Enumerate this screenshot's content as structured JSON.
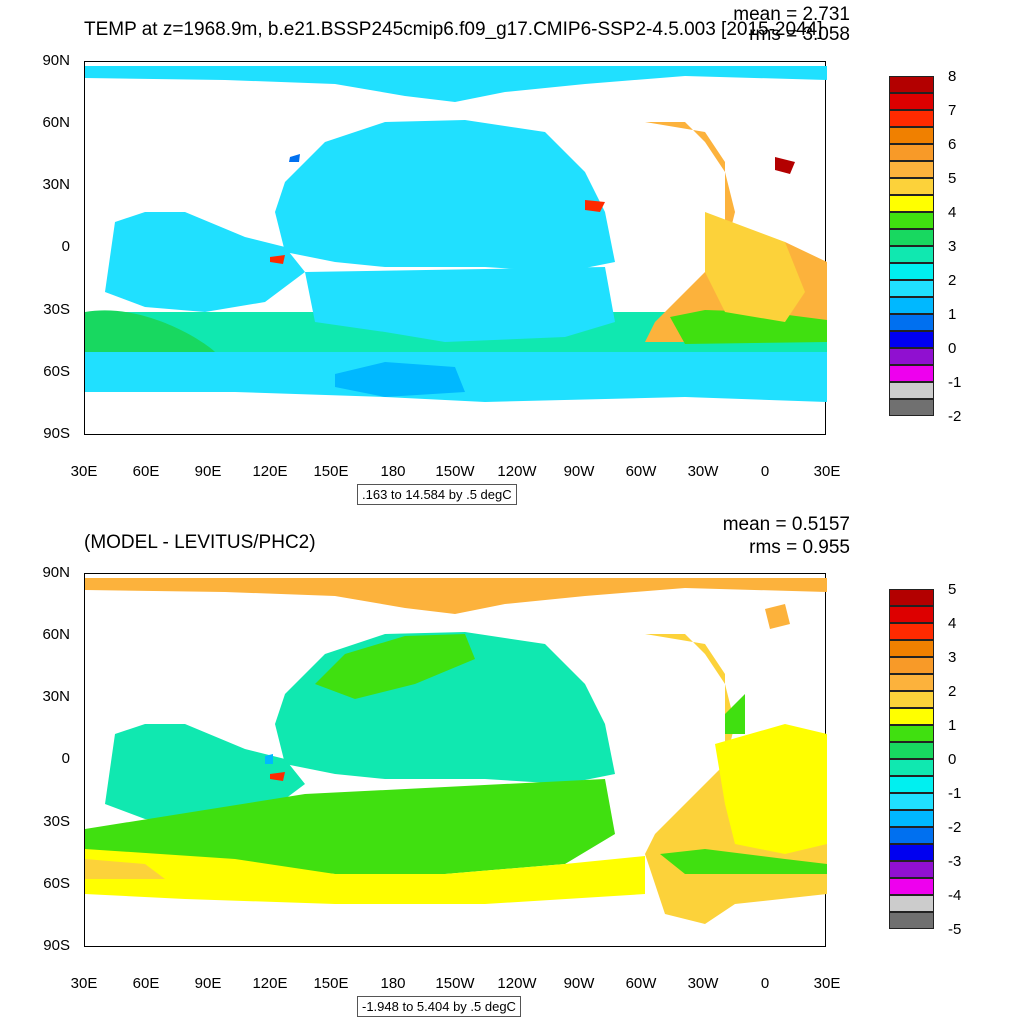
{
  "top": {
    "title": "TEMP at z=1968.9m, b.e21.BSSP245cmip6.f09_g17.CMIP6-SSP2-4.5.003 [2015-2044]",
    "mean": "mean = 2.731",
    "rms": "rms = 3.058",
    "range_label": ".163 to 14.584 by .5 degC",
    "y_ticks": [
      "90N",
      "60N",
      "30N",
      "0",
      "30S",
      "60S",
      "90S"
    ],
    "x_ticks": [
      "30E",
      "60E",
      "90E",
      "120E",
      "150E",
      "180",
      "150W",
      "120W",
      "90W",
      "60W",
      "30W",
      "0",
      "30E"
    ],
    "colorbar_labels": [
      "8",
      "7",
      "6",
      "5",
      "4",
      "3",
      "2",
      "1",
      "0",
      "-1",
      "-2"
    ],
    "colorbar_colors": [
      "#b30000",
      "#dd0000",
      "#ff2a00",
      "#f08000",
      "#f89a28",
      "#fcb23c",
      "#fcd23a",
      "#ffff00",
      "#40e010",
      "#18d860",
      "#10e8b0",
      "#00f0f0",
      "#20e0ff",
      "#00b8ff",
      "#0070f0",
      "#0000f0",
      "#9010d0",
      "#ee00ee",
      "#cccccc",
      "#707070"
    ]
  },
  "bottom": {
    "title": "(MODEL - LEVITUS/PHC2)",
    "mean": "mean = 0.5157",
    "rms": "rms = 0.955",
    "range_label": "-1.948 to 5.404 by .5 degC",
    "y_ticks": [
      "90N",
      "60N",
      "30N",
      "0",
      "30S",
      "60S",
      "90S"
    ],
    "x_ticks": [
      "30E",
      "60E",
      "90E",
      "120E",
      "150E",
      "180",
      "150W",
      "120W",
      "90W",
      "60W",
      "30W",
      "0",
      "30E"
    ],
    "colorbar_labels": [
      "5",
      "4",
      "3",
      "2",
      "1",
      "0",
      "-1",
      "-2",
      "-3",
      "-4",
      "-5"
    ],
    "colorbar_colors": [
      "#b30000",
      "#dd0000",
      "#ff2a00",
      "#f08000",
      "#f89a28",
      "#fcb23c",
      "#fcd23a",
      "#ffff00",
      "#40e010",
      "#18d860",
      "#10e8b0",
      "#00f0f0",
      "#20e0ff",
      "#00b8ff",
      "#0070f0",
      "#0000f0",
      "#9010d0",
      "#ee00ee",
      "#cccccc",
      "#707070"
    ]
  }
}
